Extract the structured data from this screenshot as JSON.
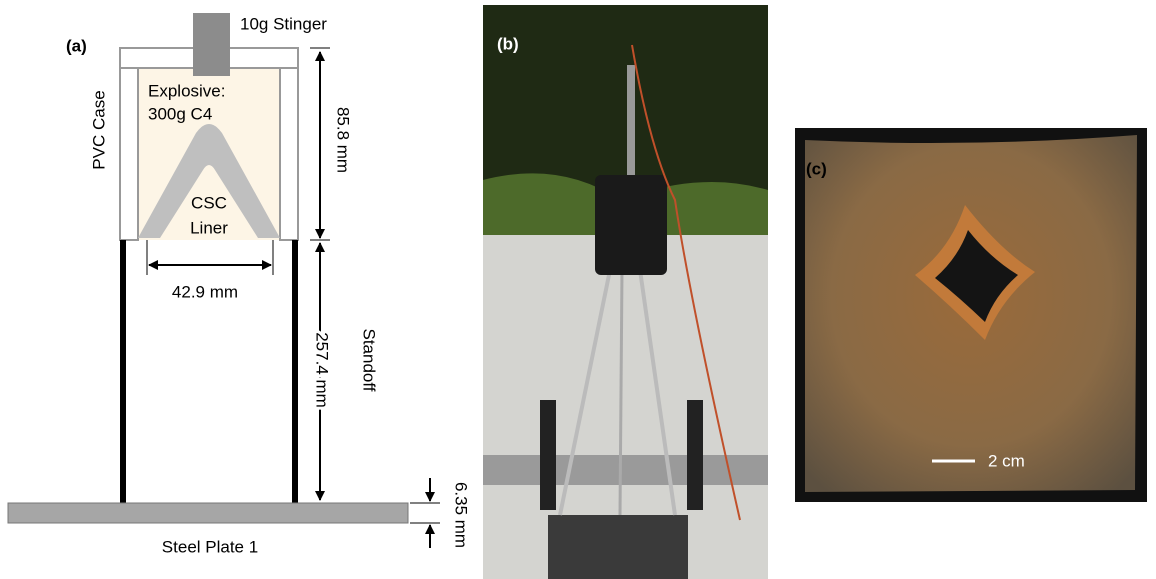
{
  "panel_a": {
    "label": "(a)",
    "stinger": "10g Stinger",
    "explosive": [
      "Explosive:",
      "300g C4"
    ],
    "case": "PVC Case",
    "liner": [
      "CSC",
      "Liner"
    ],
    "case_height": "85.8 mm",
    "liner_width": "42.9 mm",
    "standoff_length": "257.4 mm",
    "standoff": "Standoff",
    "plate_thickness": "6.35 mm",
    "plate": "Steel Plate 1"
  },
  "panel_b": {
    "label": "(b)"
  },
  "panel_c": {
    "label": "(c)",
    "scale": "2 cm"
  }
}
